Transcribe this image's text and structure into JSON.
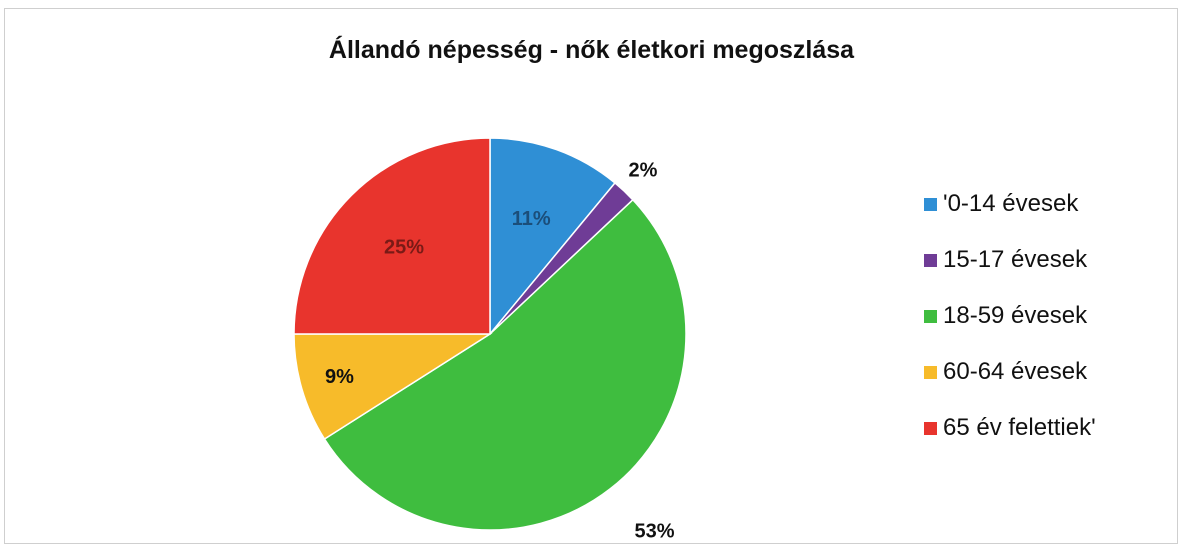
{
  "chart_data": {
    "type": "pie",
    "title": "Állandó népesség - nők életkori megoszlása",
    "categories": [
      "'0-14 évesek",
      "15-17 évesek",
      "18-59 évesek",
      "60-64 évesek",
      "65 év felettiek'"
    ],
    "values": [
      11,
      2,
      53,
      9,
      25
    ],
    "labels": [
      "11%",
      "2%",
      "53%",
      "9%",
      "25%"
    ],
    "colors": [
      "#2f8fd5",
      "#6f3c96",
      "#3fbd3f",
      "#f7bb2a",
      "#e8342d"
    ],
    "legend_position": "right"
  }
}
